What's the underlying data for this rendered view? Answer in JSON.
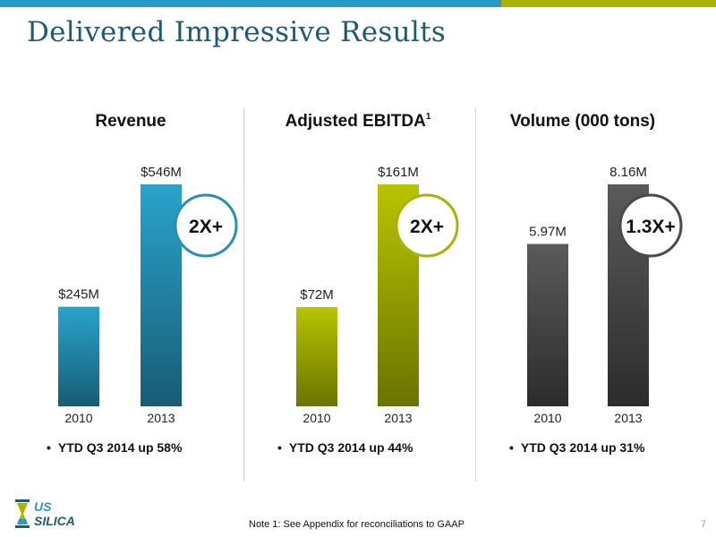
{
  "slide": {
    "title": "Delivered Impressive Results",
    "footnote": "Note 1:  See Appendix for reconciliations to GAAP",
    "page_number": "7",
    "logo_text": [
      "US",
      "SILICA"
    ]
  },
  "colors": {
    "brand_blue": "#2a9ac4",
    "brand_green": "#a8b400",
    "title": "#1e5a72"
  },
  "chart_data": [
    {
      "type": "bar",
      "title": "Revenue",
      "title_sup": "",
      "categories": [
        "2010",
        "2013"
      ],
      "values": [
        245,
        546
      ],
      "unit": "$M",
      "value_labels": [
        "$245M",
        "$546M"
      ],
      "ylim": [
        0,
        546
      ],
      "multiplier": "2X+",
      "bullet": "YTD Q3 2014 up 58%",
      "color_top": "#2aa3cc",
      "color_bottom": "#175c74",
      "ring_color": "#2a8fb6"
    },
    {
      "type": "bar",
      "title": "Adjusted EBITDA",
      "title_sup": "1",
      "categories": [
        "2010",
        "2013"
      ],
      "values": [
        72,
        161
      ],
      "unit": "$M",
      "value_labels": [
        "$72M",
        "$161M"
      ],
      "ylim": [
        0,
        161
      ],
      "multiplier": "2X+",
      "bullet": "YTD Q3 2014 up 44%",
      "color_top": "#b8c400",
      "color_bottom": "#6a7400",
      "ring_color": "#a8b400"
    },
    {
      "type": "bar",
      "title": "Volume (000 tons)",
      "title_sup": "",
      "categories": [
        "2010",
        "2013"
      ],
      "values": [
        5.97,
        8.16
      ],
      "unit": "000 tons",
      "value_labels": [
        "5.97M",
        "8.16M"
      ],
      "ylim": [
        0,
        8.16
      ],
      "multiplier": "1.3X+",
      "bullet": "YTD Q3 2014 up 31%",
      "color_top": "#5a5a5a",
      "color_bottom": "#2c2c2c",
      "ring_color": "#4a4a4a"
    }
  ]
}
